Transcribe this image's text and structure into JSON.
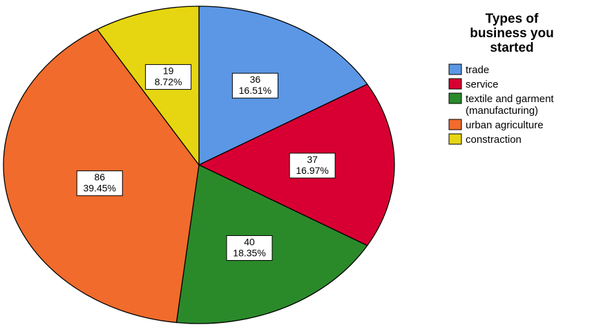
{
  "chart_data": {
    "type": "pie",
    "legend": {
      "title_lines": [
        "Types of",
        "business you",
        "started"
      ],
      "position": "right"
    },
    "slices": [
      {
        "label": "trade",
        "label_lines": [
          "trade"
        ],
        "value": 36,
        "percent": "16.51%",
        "color": "#5b97e5"
      },
      {
        "label": "service",
        "label_lines": [
          "service"
        ],
        "value": 37,
        "percent": "16.97%",
        "color": "#d80032"
      },
      {
        "label": "textile and garment (manufacturing)",
        "label_lines": [
          "textile and garment",
          "(manufacturing)"
        ],
        "value": 40,
        "percent": "18.35%",
        "color": "#2a8a2a"
      },
      {
        "label": "urban agriculture",
        "label_lines": [
          "urban agriculture"
        ],
        "value": 86,
        "percent": "39.45%",
        "color": "#f06b2c"
      },
      {
        "label": "constraction",
        "label_lines": [
          "constraction"
        ],
        "value": 19,
        "percent": "8.72%",
        "color": "#e6d611"
      }
    ],
    "start": "top",
    "direction": "clockwise"
  }
}
